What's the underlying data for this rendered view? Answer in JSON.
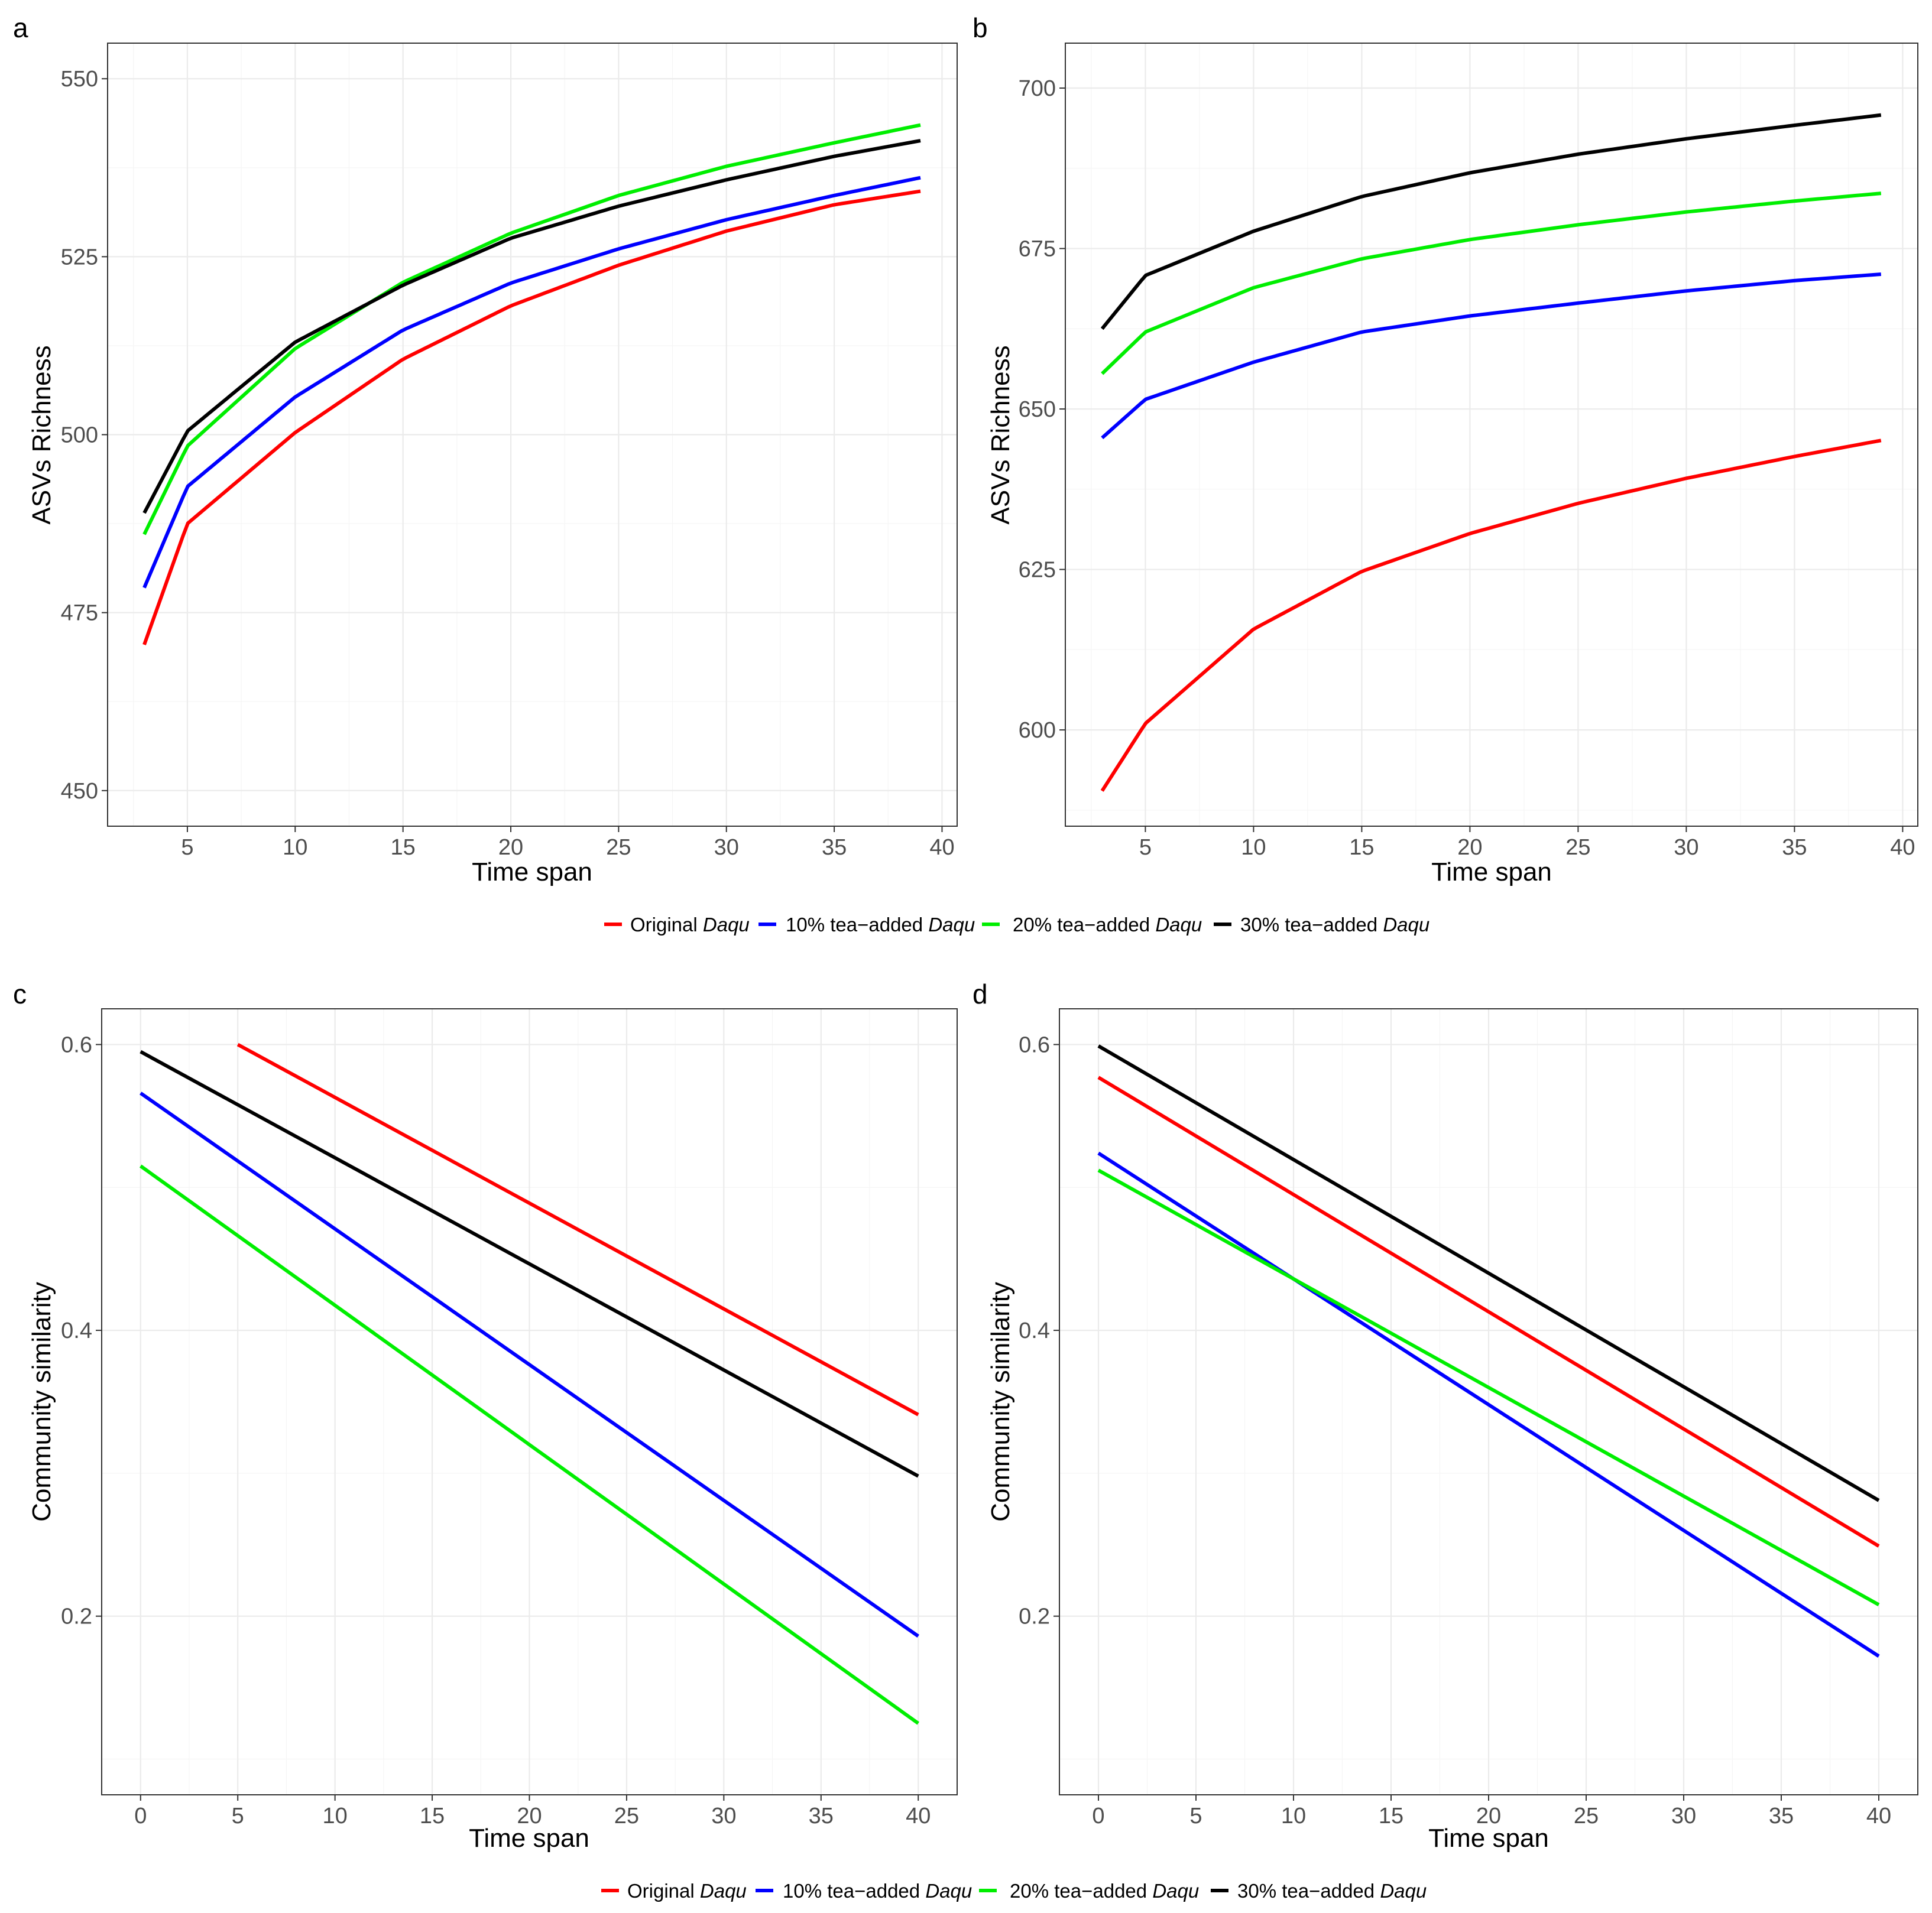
{
  "figure": {
    "series_names": [
      "Original Daqu",
      "10% tea-added Daqu",
      "20% tea-added Daqu",
      "30% tea-added Daqu"
    ],
    "legend_prefixes": [
      "Original",
      "10% tea−added",
      "20% tea−added",
      "30% tea−added"
    ],
    "legend_italic": "Daqu",
    "colors": [
      "#ff0000",
      "#0000ff",
      "#00ee00",
      "#000000"
    ]
  },
  "chart_data": [
    {
      "panel": "a",
      "type": "line",
      "model": "logarithmic",
      "xlabel": "Time span",
      "ylabel": "ASVs Richness",
      "xlim": [
        1.3,
        40.7
      ],
      "ylim": [
        445,
        555
      ],
      "xticks": [
        5,
        10,
        15,
        20,
        25,
        30,
        35,
        40
      ],
      "yticks": [
        450,
        475,
        500,
        525,
        550
      ],
      "grid": true,
      "legend": "bottom",
      "series": [
        {
          "name": "Original Daqu",
          "x": [
            3,
            5,
            10,
            15,
            20,
            25,
            30,
            35,
            39
          ],
          "y": [
            470.5,
            487.5,
            500.3,
            510.6,
            518.1,
            523.8,
            528.6,
            532.3,
            534.2
          ]
        },
        {
          "name": "10% tea-added Daqu",
          "x": [
            3,
            5,
            10,
            15,
            20,
            25,
            30,
            35,
            39
          ],
          "y": [
            478.5,
            492.7,
            505.3,
            514.7,
            521.3,
            526.1,
            530.2,
            533.6,
            536.1
          ]
        },
        {
          "name": "20% tea-added Daqu",
          "x": [
            3,
            5,
            10,
            15,
            20,
            25,
            30,
            35,
            39
          ],
          "y": [
            486.0,
            498.4,
            512.1,
            521.4,
            528.3,
            533.6,
            537.7,
            541.0,
            543.5
          ]
        },
        {
          "name": "30% tea-added Daqu",
          "x": [
            3,
            5,
            10,
            15,
            20,
            25,
            30,
            35,
            39
          ],
          "y": [
            489.0,
            500.5,
            513.0,
            521.0,
            527.6,
            532.1,
            535.8,
            539.1,
            541.3
          ]
        }
      ]
    },
    {
      "panel": "b",
      "type": "line",
      "model": "logarithmic",
      "xlabel": "Time span",
      "ylabel": "ASVs Richness",
      "xlim": [
        1.3,
        40.7
      ],
      "ylim": [
        585,
        707
      ],
      "xticks": [
        5,
        10,
        15,
        20,
        25,
        30,
        35,
        40
      ],
      "yticks": [
        600,
        625,
        650,
        675,
        700
      ],
      "grid": true,
      "legend": "bottom",
      "series": [
        {
          "name": "Original Daqu",
          "x": [
            3,
            5,
            10,
            15,
            20,
            25,
            30,
            35,
            39
          ],
          "y": [
            590.5,
            601.0,
            615.7,
            624.7,
            630.6,
            635.3,
            639.2,
            642.6,
            645.1
          ]
        },
        {
          "name": "10% tea-added Daqu",
          "x": [
            3,
            5,
            10,
            15,
            20,
            25,
            30,
            35,
            39
          ],
          "y": [
            645.5,
            651.5,
            657.3,
            662.0,
            664.5,
            666.5,
            668.4,
            670.0,
            671.0
          ]
        },
        {
          "name": "20% tea-added Daqu",
          "x": [
            3,
            5,
            10,
            15,
            20,
            25,
            30,
            35,
            39
          ],
          "y": [
            655.5,
            662.0,
            668.9,
            673.4,
            676.4,
            678.7,
            680.7,
            682.4,
            683.6
          ]
        },
        {
          "name": "30% tea-added Daqu",
          "x": [
            3,
            5,
            10,
            15,
            20,
            25,
            30,
            35,
            39
          ],
          "y": [
            662.5,
            670.8,
            677.7,
            683.1,
            686.8,
            689.7,
            692.1,
            694.2,
            695.8
          ]
        }
      ]
    },
    {
      "panel": "c",
      "type": "line",
      "model": "linear",
      "xlabel": "Time span",
      "ylabel": "Community similarity",
      "xlim": [
        -2,
        42
      ],
      "ylim": [
        0.075,
        0.625
      ],
      "xticks": [
        0,
        5,
        10,
        15,
        20,
        25,
        30,
        35,
        40
      ],
      "yticks": [
        0.2,
        0.4,
        0.6
      ],
      "grid": true,
      "legend": "bottom",
      "series": [
        {
          "name": "Original Daqu",
          "x": [
            5,
            40
          ],
          "y": [
            0.6,
            0.341
          ]
        },
        {
          "name": "10% tea-added Daqu",
          "x": [
            0,
            40
          ],
          "y": [
            0.566,
            0.186
          ]
        },
        {
          "name": "20% tea-added Daqu",
          "x": [
            0,
            40
          ],
          "y": [
            0.515,
            0.125
          ]
        },
        {
          "name": "30% tea-added Daqu",
          "x": [
            0,
            40
          ],
          "y": [
            0.595,
            0.298
          ]
        }
      ]
    },
    {
      "panel": "d",
      "type": "line",
      "model": "linear",
      "xlabel": "Time span",
      "ylabel": "Community similarity",
      "xlim": [
        -2,
        42
      ],
      "ylim": [
        0.075,
        0.625
      ],
      "xticks": [
        0,
        5,
        10,
        15,
        20,
        25,
        30,
        35,
        40
      ],
      "yticks": [
        0.2,
        0.4,
        0.6
      ],
      "grid": true,
      "legend": "bottom",
      "series": [
        {
          "name": "Original Daqu",
          "x": [
            0,
            40
          ],
          "y": [
            0.577,
            0.249
          ]
        },
        {
          "name": "10% tea-added Daqu",
          "x": [
            0,
            40
          ],
          "y": [
            0.524,
            0.172
          ]
        },
        {
          "name": "20% tea-added Daqu",
          "x": [
            0,
            40
          ],
          "y": [
            0.512,
            0.208
          ]
        },
        {
          "name": "30% tea-added Daqu",
          "x": [
            0,
            40
          ],
          "y": [
            0.599,
            0.281
          ]
        }
      ]
    }
  ]
}
